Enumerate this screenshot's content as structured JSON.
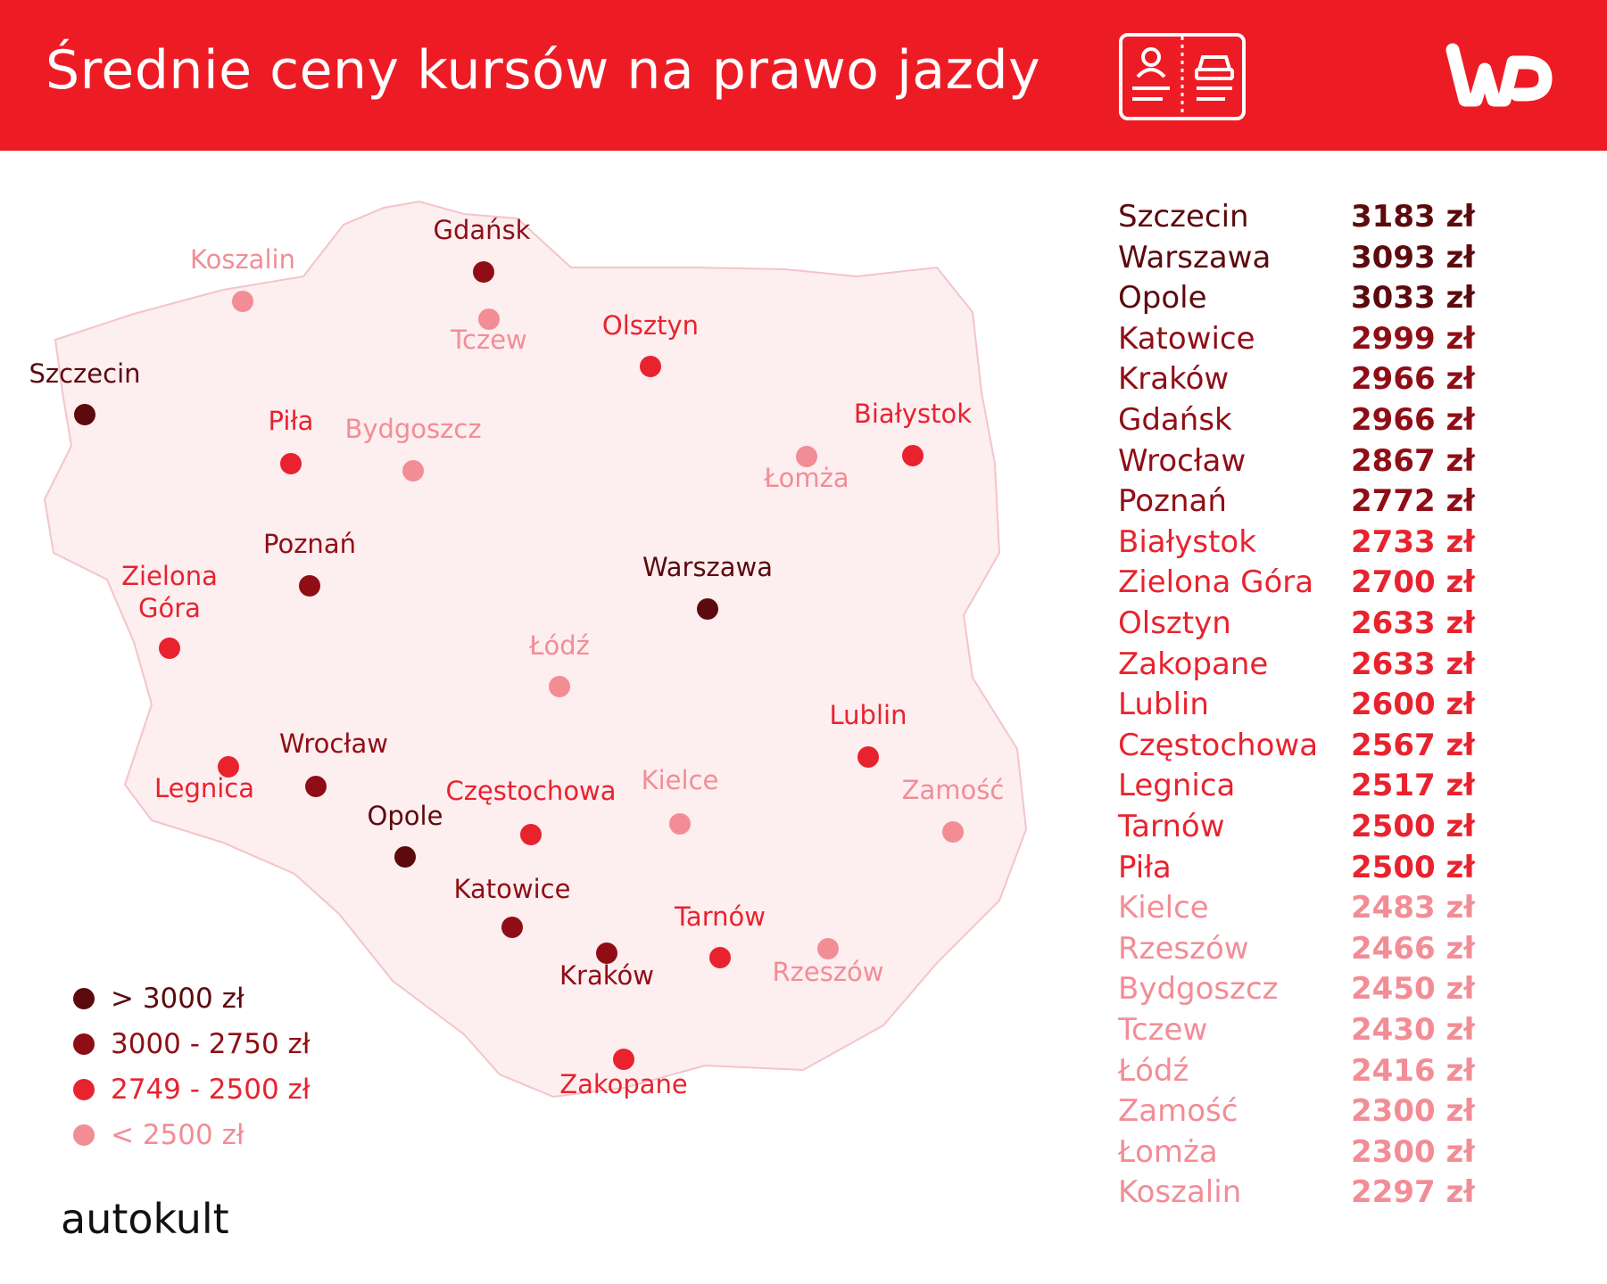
{
  "header": {
    "title": "Średnie ceny kursów na prawo jazdy",
    "icon": "driving-license-icon",
    "logo": "wp-logo"
  },
  "colors": {
    "brand": "#ed1c24",
    "tier_gt3000": "#5c0a0e",
    "tier_3000_2750": "#8f0e16",
    "tier_2749_2500": "#e8232e",
    "tier_lt2500": "#f28d96",
    "map_fill": "#fdeef0"
  },
  "legend": [
    {
      "label": "> 3000 zł",
      "tier": "tier_gt3000"
    },
    {
      "label": "3000 - 2750 zł",
      "tier": "tier_3000_2750"
    },
    {
      "label": "2749 - 2500 zł",
      "tier": "tier_2749_2500"
    },
    {
      "label": "< 2500 zł",
      "tier": "tier_lt2500"
    }
  ],
  "cities": [
    {
      "name": "Szczecin",
      "price": "3183 zł",
      "tier": "tier_gt3000"
    },
    {
      "name": "Warszawa",
      "price": "3093 zł",
      "tier": "tier_gt3000"
    },
    {
      "name": "Opole",
      "price": "3033 zł",
      "tier": "tier_gt3000"
    },
    {
      "name": "Katowice",
      "price": "2999 zł",
      "tier": "tier_3000_2750"
    },
    {
      "name": "Kraków",
      "price": "2966 zł",
      "tier": "tier_3000_2750"
    },
    {
      "name": "Gdańsk",
      "price": "2966 zł",
      "tier": "tier_3000_2750"
    },
    {
      "name": "Wrocław",
      "price": "2867 zł",
      "tier": "tier_3000_2750"
    },
    {
      "name": "Poznań",
      "price": "2772 zł",
      "tier": "tier_3000_2750"
    },
    {
      "name": "Białystok",
      "price": "2733 zł",
      "tier": "tier_2749_2500"
    },
    {
      "name": "Zielona Góra",
      "price": "2700 zł",
      "tier": "tier_2749_2500"
    },
    {
      "name": "Olsztyn",
      "price": "2633 zł",
      "tier": "tier_2749_2500"
    },
    {
      "name": "Zakopane",
      "price": "2633 zł",
      "tier": "tier_2749_2500"
    },
    {
      "name": "Lublin",
      "price": "2600 zł",
      "tier": "tier_2749_2500"
    },
    {
      "name": "Częstochowa",
      "price": "2567 zł",
      "tier": "tier_2749_2500"
    },
    {
      "name": "Legnica",
      "price": "2517 zł",
      "tier": "tier_2749_2500"
    },
    {
      "name": "Tarnów",
      "price": "2500 zł",
      "tier": "tier_2749_2500"
    },
    {
      "name": "Piła",
      "price": "2500 zł",
      "tier": "tier_2749_2500"
    },
    {
      "name": "Kielce",
      "price": "2483 zł",
      "tier": "tier_lt2500"
    },
    {
      "name": "Rzeszów",
      "price": "2466 zł",
      "tier": "tier_lt2500"
    },
    {
      "name": "Bydgoszcz",
      "price": "2450 zł",
      "tier": "tier_lt2500"
    },
    {
      "name": "Tczew",
      "price": "2430 zł",
      "tier": "tier_lt2500"
    },
    {
      "name": "Łódź",
      "price": "2416 zł",
      "tier": "tier_lt2500"
    },
    {
      "name": "Zamość",
      "price": "2300 zł",
      "tier": "tier_lt2500"
    },
    {
      "name": "Łomża",
      "price": "2300 zł",
      "tier": "tier_lt2500"
    },
    {
      "name": "Koszalin",
      "price": "2297 zł",
      "tier": "tier_lt2500"
    }
  ],
  "source": "autokult"
}
